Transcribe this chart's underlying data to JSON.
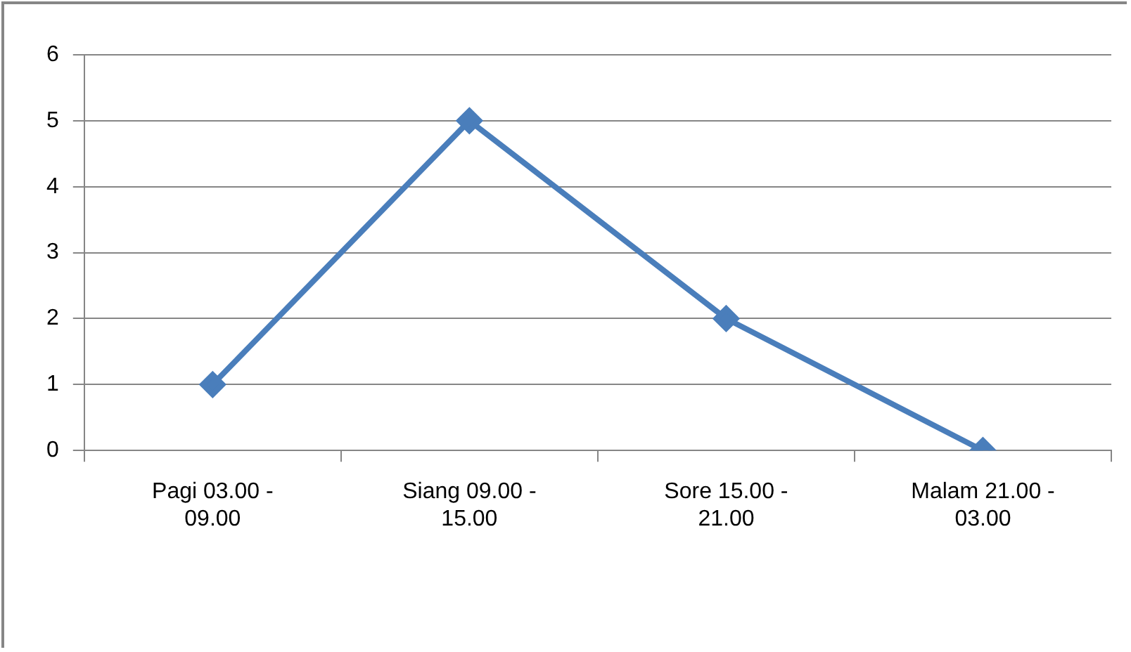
{
  "chart_data": {
    "type": "line",
    "categories": [
      "Pagi 03.00 - 09.00",
      "Siang 09.00 - 15.00",
      "Sore 15.00 - 21.00",
      "Malam 21.00 - 03.00"
    ],
    "series": [
      {
        "color": "#4a7ebb",
        "values": [
          1,
          5,
          2,
          0
        ]
      }
    ],
    "ylim": [
      0,
      6
    ],
    "yticks": [
      0,
      1,
      2,
      3,
      4,
      5,
      6
    ],
    "grid": "y",
    "legend": false,
    "marker": "diamond",
    "line_style": "solid"
  }
}
